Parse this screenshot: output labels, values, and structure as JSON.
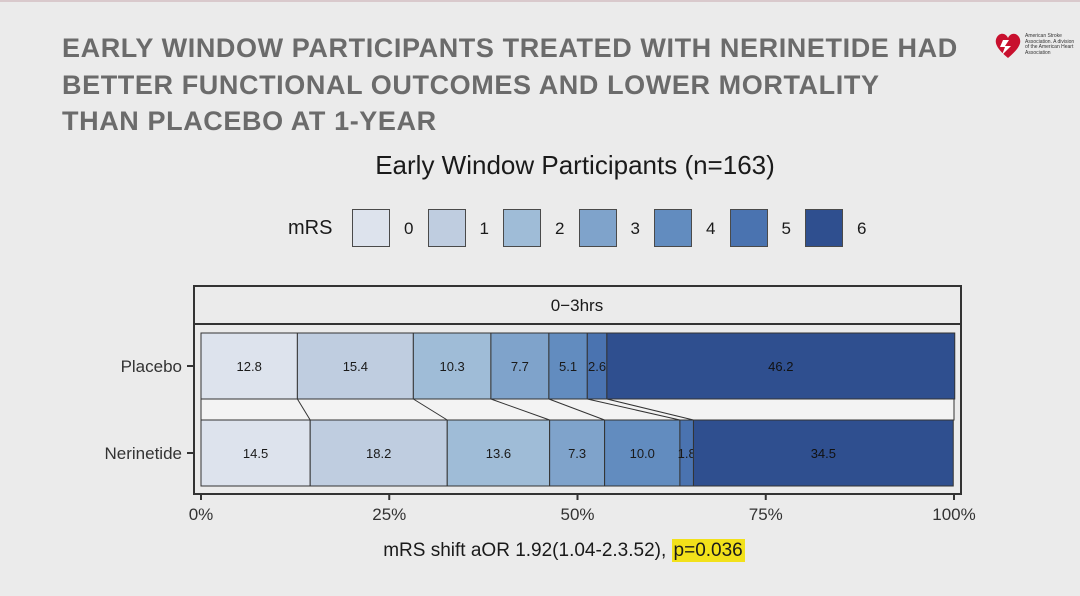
{
  "slide": {
    "title": "EARLY WINDOW PARTICIPANTS TREATED WITH NERINETIDE HAD BETTER FUNCTIONAL OUTCOMES AND LOWER MORTALITY THAN PLACEBO AT 1-YEAR",
    "logo_text": "American Stroke Association. A division of the American Heart Association",
    "footnote_main": "mRS shift aOR 1.92(1.04-2.3.52), ",
    "footnote_highlight": "p=0.036"
  },
  "chart_data": {
    "type": "bar",
    "orientation": "horizontal-stacked-percent",
    "title": "Early Window Participants (n=163)",
    "legend": {
      "title": "mRS",
      "position": "top",
      "items": [
        "0",
        "1",
        "2",
        "3",
        "4",
        "5",
        "6"
      ]
    },
    "facet_label": "0−3hrs",
    "categories": [
      "Placebo",
      "Nerinetide"
    ],
    "series": [
      {
        "name": "0",
        "color": "#dde3ed",
        "values": [
          12.8,
          14.5
        ]
      },
      {
        "name": "1",
        "color": "#bfcde0",
        "values": [
          15.4,
          18.2
        ]
      },
      {
        "name": "2",
        "color": "#9fbcd7",
        "values": [
          10.3,
          13.6
        ]
      },
      {
        "name": "3",
        "color": "#7fa3cb",
        "values": [
          7.7,
          7.3
        ]
      },
      {
        "name": "4",
        "color": "#628cbf",
        "values": [
          5.1,
          10.0
        ]
      },
      {
        "name": "5",
        "color": "#4a73b0",
        "values": [
          2.6,
          1.8
        ]
      },
      {
        "name": "6",
        "color": "#2f4f8f",
        "values": [
          46.2,
          34.5
        ]
      }
    ],
    "data_labels": [
      [
        "12.8",
        "15.4",
        "10.3",
        "7.7",
        "5.1",
        "2.6",
        "46.2"
      ],
      [
        "14.5",
        "18.2",
        "13.6",
        "7.3",
        "10.0",
        "1.8",
        "34.5"
      ]
    ],
    "x_ticks": [
      "0%",
      "25%",
      "50%",
      "75%",
      "100%"
    ],
    "xlim": [
      0,
      100
    ],
    "grid": false
  }
}
